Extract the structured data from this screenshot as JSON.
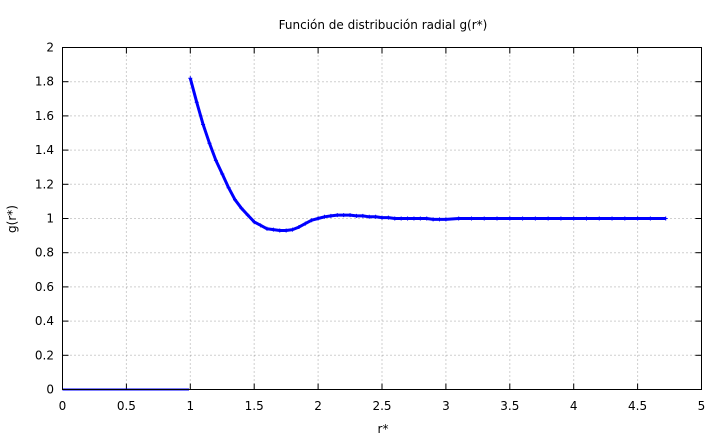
{
  "chart_data": {
    "type": "scatter",
    "title": "Función de distribución radial g(r*)",
    "xlabel": "r*",
    "ylabel": "g(r*)",
    "xlim": [
      0,
      5
    ],
    "ylim": [
      0,
      2
    ],
    "xticks": [
      "0",
      "0.5",
      "1",
      "1.5",
      "2",
      "2.5",
      "3",
      "3.5",
      "4",
      "4.5",
      "5"
    ],
    "yticks": [
      "0",
      "0.2",
      "0.4",
      "0.6",
      "0.8",
      "1",
      "1.2",
      "1.4",
      "1.6",
      "1.8",
      "2"
    ],
    "grid": true,
    "series_color": "#0000ff",
    "series": [
      {
        "x": [
          0.0,
          0.1,
          0.2,
          0.3,
          0.4,
          0.5,
          0.6,
          0.7,
          0.8,
          0.9,
          0.99,
          1.0,
          1.05,
          1.1,
          1.15,
          1.2,
          1.25,
          1.3,
          1.35,
          1.4,
          1.45,
          1.5,
          1.55,
          1.6,
          1.65,
          1.7,
          1.75,
          1.8,
          1.85,
          1.9,
          1.95,
          2.0,
          2.05,
          2.1,
          2.15,
          2.2,
          2.25,
          2.3,
          2.35,
          2.4,
          2.45,
          2.5,
          2.55,
          2.6,
          2.65,
          2.7,
          2.75,
          2.8,
          2.85,
          2.9,
          2.95,
          3.0,
          3.1,
          3.2,
          3.3,
          3.4,
          3.5,
          3.6,
          3.7,
          3.8,
          3.9,
          4.0,
          4.1,
          4.2,
          4.3,
          4.4,
          4.5,
          4.6,
          4.72
        ],
        "y": [
          0,
          0,
          0,
          0,
          0,
          0,
          0,
          0,
          0,
          0,
          0,
          1.82,
          1.68,
          1.55,
          1.44,
          1.34,
          1.26,
          1.18,
          1.11,
          1.06,
          1.02,
          0.98,
          0.96,
          0.94,
          0.935,
          0.93,
          0.93,
          0.935,
          0.95,
          0.97,
          0.99,
          1.0,
          1.01,
          1.015,
          1.02,
          1.02,
          1.02,
          1.015,
          1.015,
          1.01,
          1.01,
          1.005,
          1.005,
          1.0,
          1.0,
          1.0,
          1.0,
          1.0,
          1.0,
          0.995,
          0.995,
          0.995,
          1.0,
          1.0,
          1.0,
          1.0,
          1.0,
          1.0,
          1.0,
          1.0,
          1.0,
          1.0,
          1.0,
          1.0,
          1.0,
          1.0,
          1.0,
          1.0,
          1.0
        ]
      }
    ]
  }
}
